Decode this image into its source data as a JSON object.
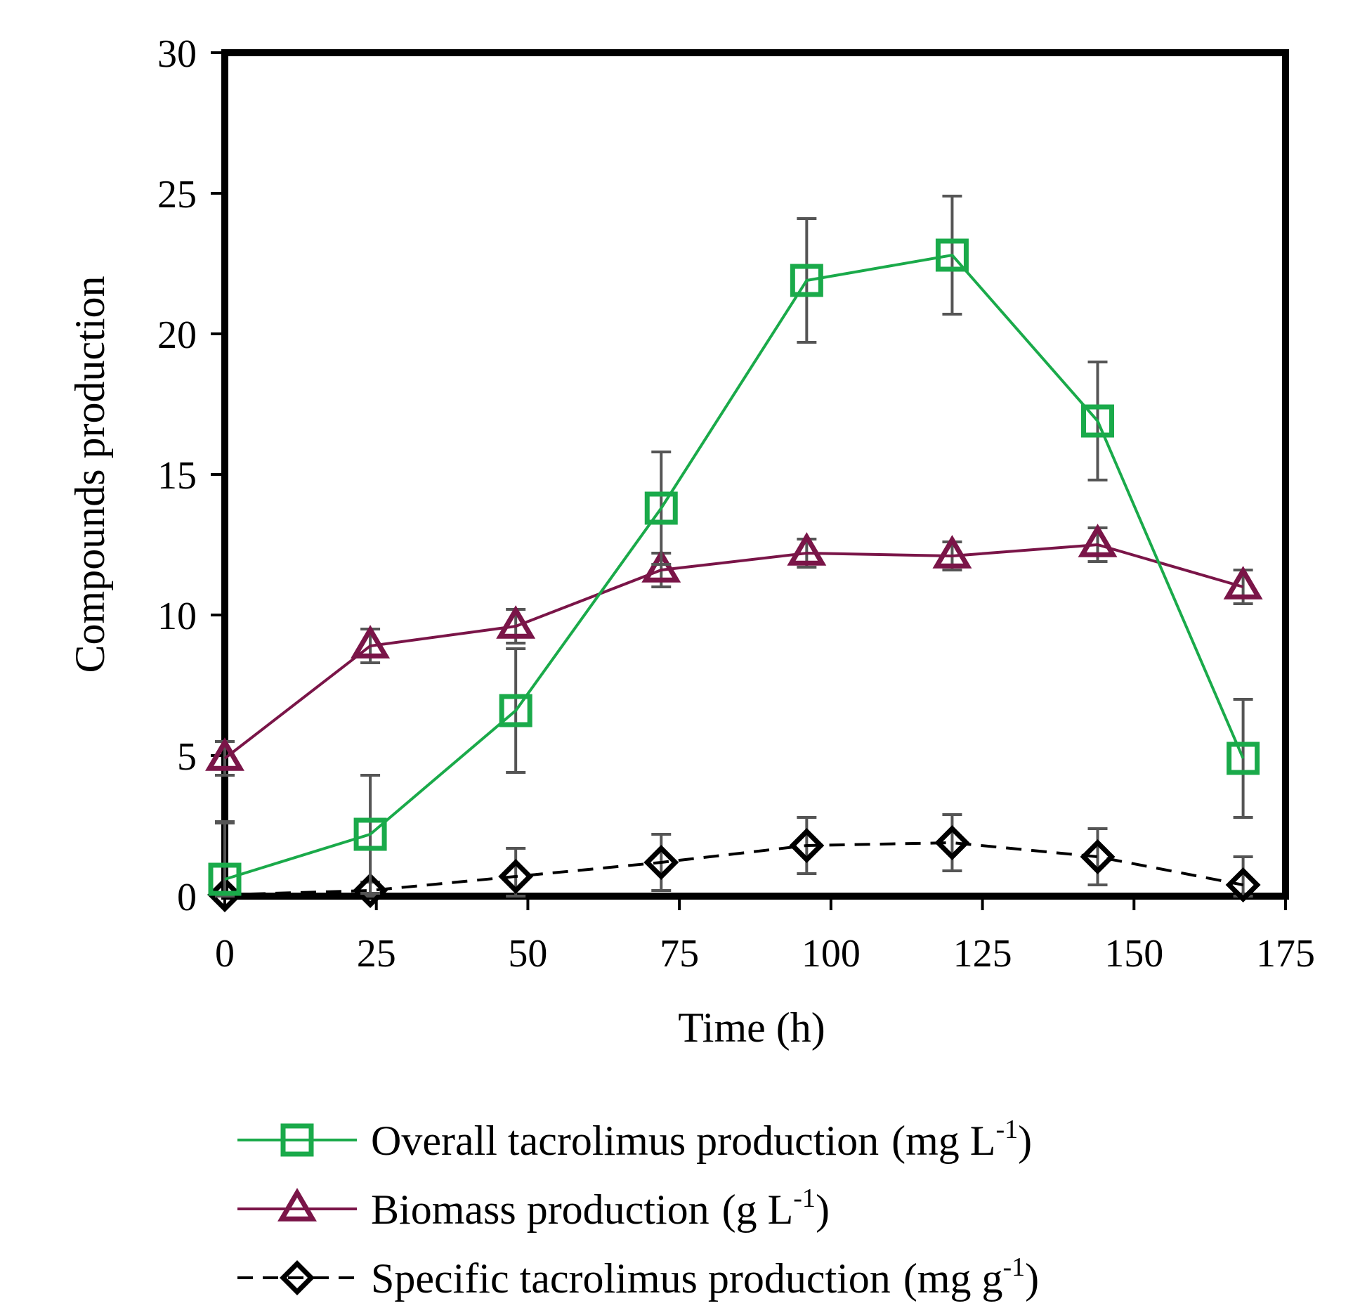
{
  "chart_data": {
    "type": "line",
    "xlabel": "Time (h)",
    "ylabel": "Compounds production",
    "xlim": [
      0,
      175
    ],
    "ylim": [
      0,
      30
    ],
    "xticks": [
      0,
      25,
      50,
      75,
      100,
      125,
      150,
      175
    ],
    "yticks": [
      0,
      5,
      10,
      15,
      20,
      25,
      30
    ],
    "grid": false,
    "legend_position": "bottom",
    "x": [
      0,
      24,
      48,
      72,
      96,
      120,
      144,
      168
    ],
    "series": [
      {
        "name": "Overall tacrolimus production",
        "unit_base": "(mg L",
        "unit_sup": "-1",
        "unit_close": ")",
        "color": "#1aaa4a",
        "marker": "square",
        "line_style": "solid",
        "values": [
          0.6,
          2.2,
          6.6,
          13.8,
          21.9,
          22.8,
          16.9,
          4.9
        ],
        "errors": [
          2.0,
          2.1,
          2.2,
          2.0,
          2.2,
          2.1,
          2.1,
          2.1
        ]
      },
      {
        "name": "Biomass production",
        "unit_base": "(g L",
        "unit_sup": "-1",
        "unit_close": ")",
        "color": "#7a1548",
        "marker": "triangle",
        "line_style": "solid",
        "values": [
          4.9,
          8.9,
          9.6,
          11.6,
          12.2,
          12.1,
          12.5,
          11.0
        ],
        "errors": [
          0.6,
          0.6,
          0.6,
          0.6,
          0.5,
          0.5,
          0.6,
          0.6
        ]
      },
      {
        "name": "Specific tacrolimus production",
        "unit_base": "(mg g",
        "unit_sup": "-1",
        "unit_close": ")",
        "color": "#000000",
        "marker": "diamond",
        "line_style": "dashed",
        "values": [
          0.05,
          0.2,
          0.7,
          1.2,
          1.8,
          1.9,
          1.4,
          0.4
        ],
        "errors": [
          2.6,
          0.3,
          1.0,
          1.0,
          1.0,
          1.0,
          1.0,
          1.0
        ]
      }
    ]
  }
}
